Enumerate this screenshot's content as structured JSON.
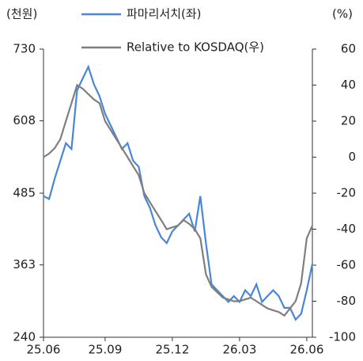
{
  "chart_data": {
    "type": "line",
    "y_label": "(천원)",
    "y2_label": "(%)",
    "categories": [
      "25.06",
      null,
      null,
      null,
      null,
      null,
      null,
      null,
      null,
      null,
      null,
      "25.09",
      null,
      null,
      null,
      null,
      null,
      null,
      null,
      null,
      null,
      null,
      null,
      "25.12",
      null,
      null,
      null,
      null,
      null,
      null,
      null,
      null,
      null,
      null,
      null,
      "26.03",
      null,
      null,
      null,
      null,
      null,
      null,
      null,
      null,
      null,
      null,
      null,
      "26.06",
      null
    ],
    "series": [
      {
        "name": "파마리서치(좌)",
        "color": "#4a86d8",
        "values": [
          480,
          475,
          510,
          540,
          570,
          560,
          660,
          680,
          700,
          670,
          650,
          620,
          600,
          580,
          560,
          570,
          540,
          530,
          480,
          460,
          430,
          410,
          400,
          420,
          430,
          440,
          450,
          420,
          480,
          400,
          330,
          320,
          310,
          300,
          310,
          300,
          320,
          310,
          330,
          300,
          310,
          320,
          310,
          290,
          290,
          270,
          280,
          320,
          365
        ]
      },
      {
        "name": "Relative to KOSDAQ(우)",
        "color": "#7f7f7f",
        "axis": "y2",
        "values": [
          0,
          2,
          5,
          10,
          20,
          30,
          40,
          38,
          35,
          32,
          30,
          20,
          15,
          10,
          5,
          0,
          -5,
          -10,
          -20,
          -25,
          -30,
          -35,
          -40,
          -39,
          -38,
          -35,
          -37,
          -40,
          -45,
          -65,
          -72,
          -75,
          -78,
          -79,
          -80,
          -80,
          -79,
          -78,
          -80,
          -82,
          -84,
          -85,
          -86,
          -88,
          -84,
          -80,
          -70,
          -45,
          -38
        ]
      }
    ],
    "ylim": [
      240,
      730
    ],
    "yticks": [
      240,
      363,
      485,
      608,
      730
    ],
    "y2lim": [
      -100,
      60
    ],
    "y2ticks": [
      -100,
      -80,
      -60,
      -40,
      -20,
      0,
      20,
      40,
      60
    ]
  }
}
